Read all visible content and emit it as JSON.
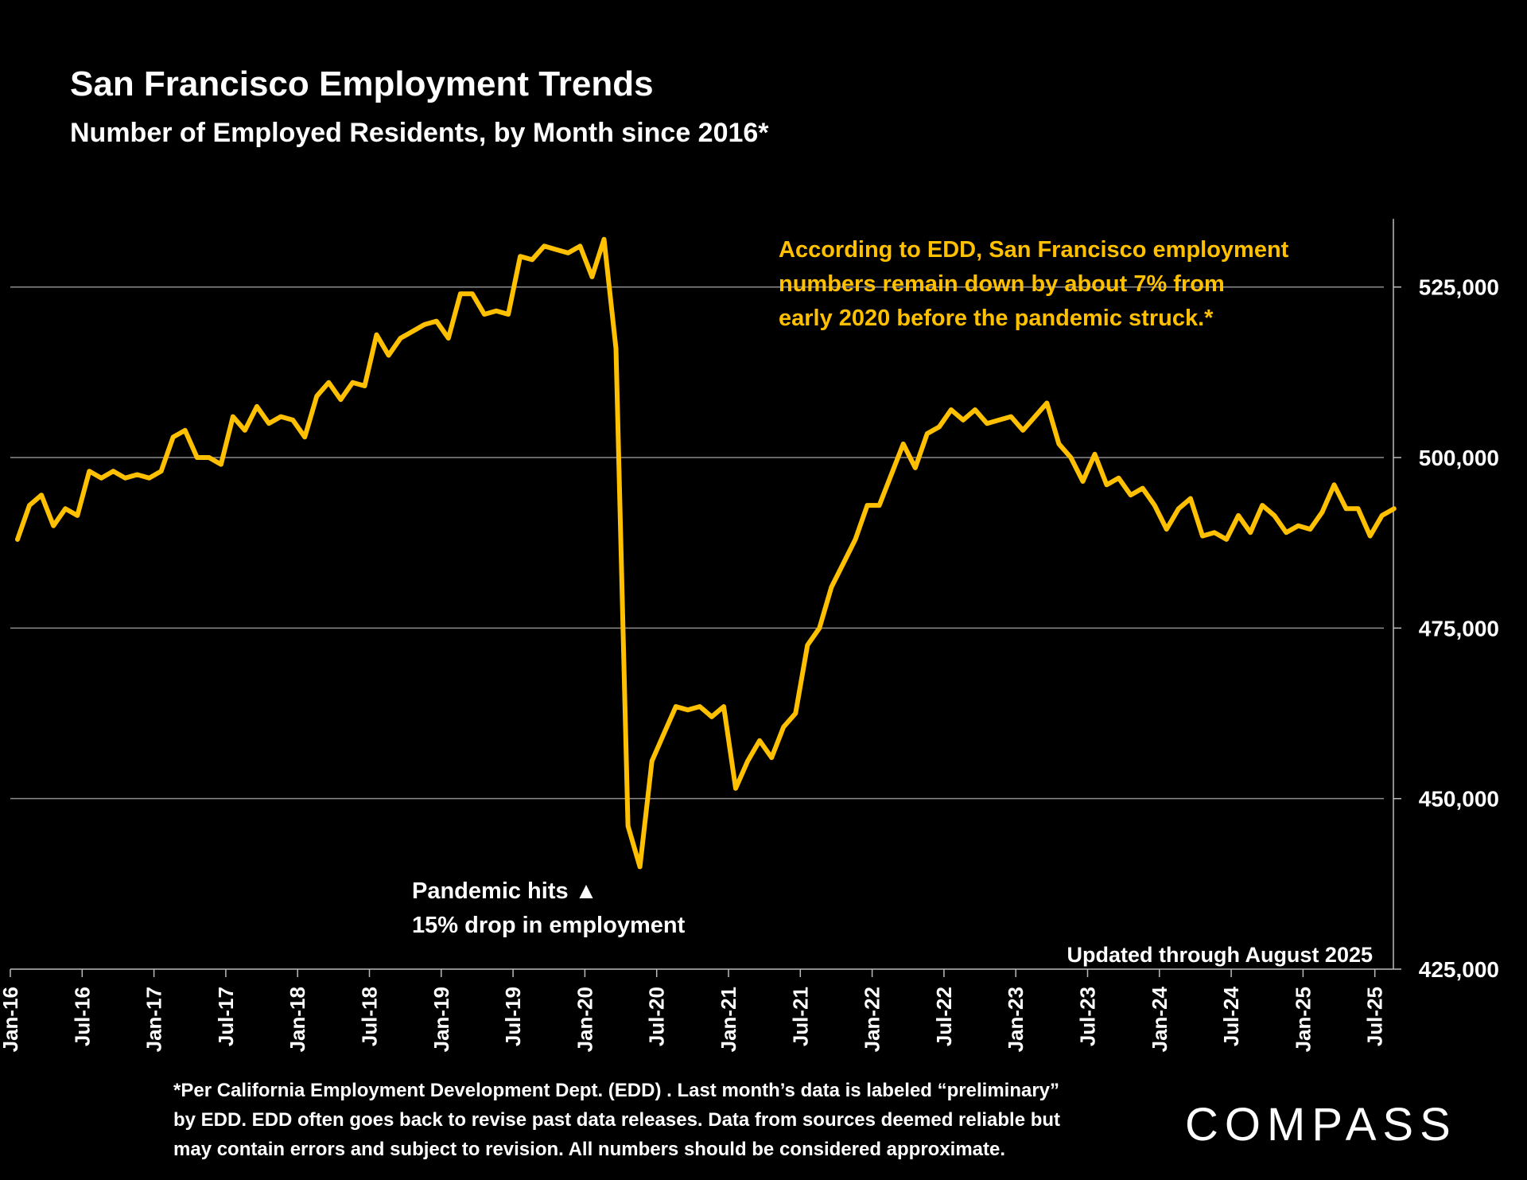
{
  "title": "San Francisco Employment Trends",
  "subtitle": "Number of Employed Residents, by Month since 2016*",
  "annotation_edd": "According to EDD, San Francisco employment numbers remain down by about 7% from early 2020 before the pandemic struck.*",
  "annotation_edd_lines": [
    "According to EDD, San Francisco employment",
    "numbers remain down by about 7% from",
    "early 2020 before the pandemic struck.*"
  ],
  "annotation_pandemic_1": "Pandemic hits ▲",
  "annotation_pandemic_2": "15% drop in employment",
  "updated_note": "Updated through August 2025",
  "footnote_lines": [
    "*Per California Employment Development Dept. (EDD) . Last month’s data is labeled “preliminary”",
    "by EDD. EDD often goes back to revise past data releases. Data from sources deemed reliable but",
    "may contain errors and subject to revision. All numbers should be considered approximate."
  ],
  "logo_text": "COMPASS",
  "colors": {
    "background": "#000000",
    "line": "#FFC000",
    "text": "#FFFFFF",
    "accent_text": "#FFC000",
    "grid": "#8C8C8C"
  },
  "chart_data": {
    "type": "line",
    "title": "San Francisco Employment Trends",
    "subtitle": "Number of Employed Residents, by Month since 2016*",
    "x_start": "Jan-16",
    "x_end": "Aug-25",
    "x_tick_labels": [
      "Jan-16",
      "Jul-16",
      "Jan-17",
      "Jul-17",
      "Jan-18",
      "Jul-18",
      "Jan-19",
      "Jul-19",
      "Jan-20",
      "Jul-20",
      "Jan-21",
      "Jul-21",
      "Jan-22",
      "Jul-22",
      "Jan-23",
      "Jul-23",
      "Jan-24",
      "Jul-24",
      "Jan-25",
      "Jul-25"
    ],
    "y_tick_labels": [
      "425,000",
      "450,000",
      "475,000",
      "500,000",
      "525,000"
    ],
    "ylim": [
      425000,
      535000
    ],
    "y_axis_side": "right",
    "grid": true,
    "series": [
      {
        "values": [
          488000,
          493000,
          494500,
          490000,
          492500,
          491500,
          498000,
          497000,
          498000,
          497000,
          497500,
          497000,
          498000,
          503000,
          504000,
          500000,
          500000,
          499000,
          506000,
          504000,
          507500,
          505000,
          506000,
          505500,
          503000,
          509000,
          511000,
          508500,
          511000,
          510500,
          518000,
          515000,
          517500,
          518500,
          519500,
          520000,
          517500,
          524000,
          524000,
          521000,
          521500,
          521000,
          529500,
          529000,
          531000,
          530500,
          530000,
          531000,
          526500,
          532000,
          516000,
          446000,
          440000,
          455500,
          459500,
          463500,
          463000,
          463500,
          462000,
          463500,
          451500,
          455500,
          458500,
          456000,
          460500,
          462500,
          472500,
          475000,
          481000,
          484500,
          488000,
          493000,
          493000,
          497500,
          502000,
          498500,
          503500,
          504500,
          507000,
          505500,
          507000,
          505000,
          505500,
          506000,
          504000,
          506000,
          508000,
          502000,
          500000,
          496500,
          500500,
          496000,
          497000,
          494500,
          495500,
          493000,
          489500,
          492500,
          494000,
          488500,
          489000,
          488000,
          491500,
          489000,
          493000,
          491500,
          489000,
          490000,
          489500,
          492000,
          496000,
          492500,
          492500,
          488500,
          491500,
          492500
        ]
      }
    ]
  }
}
